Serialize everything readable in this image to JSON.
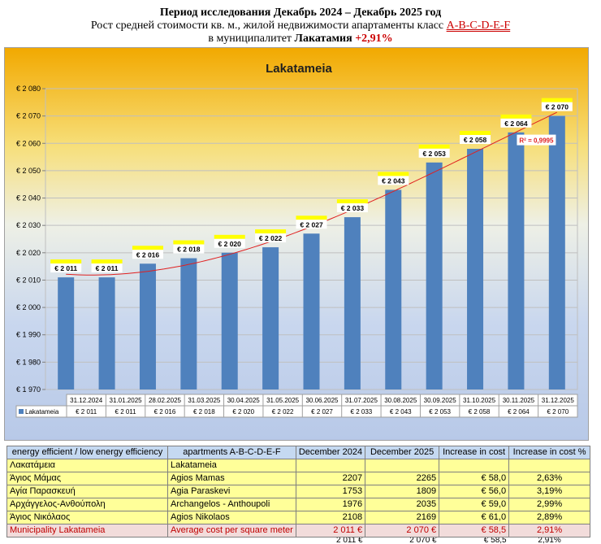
{
  "header": {
    "line1": "Период исследования Декабрь 2024 – Декабрь 2025 год",
    "line2_prefix": "Рост средней стоимости кв. м., жилой недвижимости апартаменты класс ",
    "line2_class": "A-B-C-D-E-F",
    "line3_prefix": "в муниципалитет  ",
    "line3_city": "Лакатамия",
    "line3_growth": " +2,91%"
  },
  "chart_data": {
    "type": "bar",
    "title": "Lakatameia",
    "categories": [
      "31.12.2024",
      "31.01.2025",
      "28.02.2025",
      "31.03.2025",
      "30.04.2025",
      "31.05.2025",
      "30.06.2025",
      "31.07.2025",
      "30.08.2025",
      "30.09.2025",
      "31.10.2025",
      "30.11.2025",
      "31.12.2025"
    ],
    "series": [
      {
        "name": "Lakatameia",
        "values": [
          2011,
          2011,
          2016,
          2018,
          2020,
          2022,
          2027,
          2033,
          2043,
          2053,
          2058,
          2064,
          2070
        ]
      }
    ],
    "data_labels": [
      "€ 2 011",
      "€ 2 011",
      "€ 2 016",
      "€ 2 018",
      "€ 2 020",
      "€ 2 022",
      "€ 2 027",
      "€ 2 033",
      "€ 2 043",
      "€ 2 053",
      "€ 2 058",
      "€ 2 064",
      "€ 2 070"
    ],
    "ylim": [
      1970,
      2080
    ],
    "y_ticks": [
      1970,
      1980,
      1990,
      2000,
      2010,
      2020,
      2030,
      2040,
      2050,
      2060,
      2070,
      2080
    ],
    "y_tick_labels": [
      "€ 1 970",
      "€ 1 980",
      "€ 1 990",
      "€ 2 000",
      "€ 2 010",
      "€ 2 020",
      "€ 2 030",
      "€ 2 040",
      "€ 2 050",
      "€ 2 060",
      "€ 2 070",
      "€ 2 080"
    ],
    "trendline": {
      "type": "polynomial",
      "r_squared_label": "R² = 0,9995",
      "color": "#e02020"
    },
    "grid": true,
    "data_table": true,
    "colors": {
      "bar": "#4f81bd",
      "label_highlight": "#ffff00"
    }
  },
  "table": {
    "columns": [
      "energy efficient / low energy efficiency",
      "apartments A-B-C-D-E-F",
      "December 2024",
      "December 2025",
      "Increase in cost",
      "Increase in cost  %"
    ],
    "rows": [
      [
        "Λακατάμεια",
        "Lakatameia",
        "",
        "",
        "",
        ""
      ],
      [
        "Άγιος Μάμας",
        "Agios Mamas",
        "2207",
        "2265",
        "€ 58,0",
        "2,63%"
      ],
      [
        "Αγία Παρασκευή",
        "Agia Paraskevi",
        "1753",
        "1809",
        "€ 56,0",
        "3,19%"
      ],
      [
        "Αρχάγγελος-Ανθούπολη",
        "Archangelos - Anthoupoli",
        "1976",
        "2035",
        "€ 59,0",
        "2,99%"
      ],
      [
        "Άγιος Νικόλαος",
        "Agios Nikolaos",
        "2108",
        "2169",
        "€ 61,0",
        "2,89%"
      ]
    ],
    "municipality_row": [
      "Municipality  Lakatameia",
      "Average cost per square meter",
      "2 011 €",
      "2 070 €",
      "€ 58,5",
      "2,91%"
    ],
    "partial_row": [
      "",
      "",
      "2 011 €",
      "2 070 €",
      "€ 58,5",
      "2,91%"
    ]
  }
}
